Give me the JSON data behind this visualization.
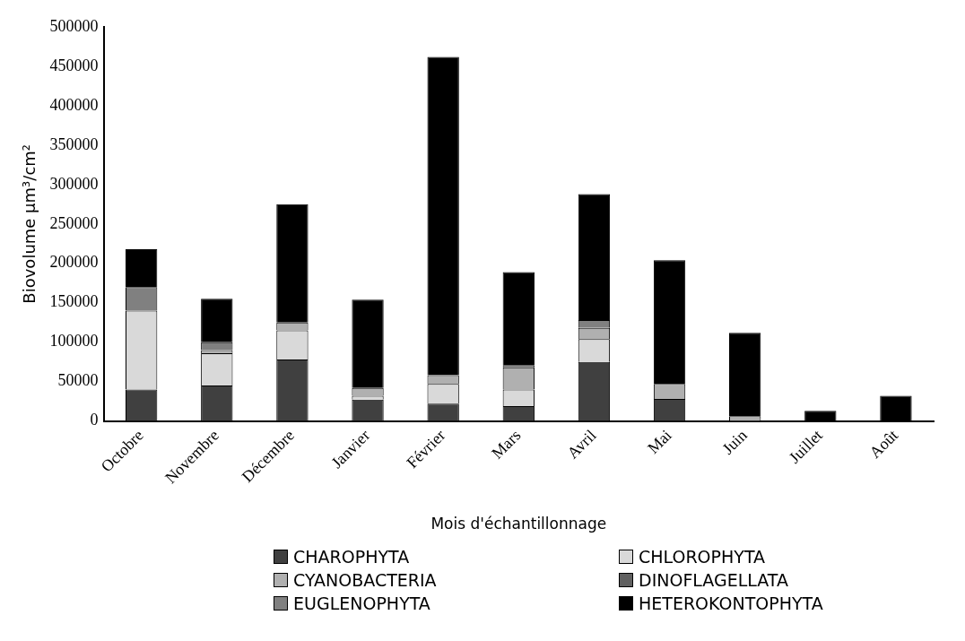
{
  "chart_data": {
    "type": "bar",
    "stacked": true,
    "xlabel": "Mois d'échantillonnage",
    "ylabel": "Biovolume µm³/cm²",
    "categories": [
      "Octobre",
      "Novembre",
      "Décembre",
      "Janvier",
      "Février",
      "Mars",
      "Avril",
      "Mai",
      "Juin",
      "Juillet",
      "Août"
    ],
    "series": [
      {
        "name": "CHAROPHYTA",
        "color": "#404040",
        "values": [
          40000,
          45000,
          78000,
          27000,
          22000,
          19000,
          75000,
          28000,
          0,
          0,
          0
        ]
      },
      {
        "name": "CHLOROPHYTA",
        "color": "#d9d9d9",
        "values": [
          100000,
          41000,
          37000,
          5000,
          25000,
          21000,
          29000,
          0,
          0,
          0,
          0
        ]
      },
      {
        "name": "CYANOBACTERIA",
        "color": "#b0b0b0",
        "values": [
          0,
          4000,
          10000,
          10000,
          11000,
          28000,
          14000,
          19000,
          6000,
          null,
          0
        ]
      },
      {
        "name": "DINOFLAGELLATA",
        "color": "#606060",
        "values": [
          0,
          0,
          0,
          0,
          0,
          3000,
          0,
          0,
          0,
          0,
          0
        ]
      },
      {
        "name": "EUGLENOPHYTA",
        "color": "#808080",
        "values": [
          30000,
          10000,
          0,
          0,
          0,
          0,
          10000,
          0,
          0,
          0,
          0
        ]
      },
      {
        "name": "HETEROKONTOPHYTA",
        "color": "#000000",
        "values": [
          48000,
          55000,
          150000,
          112000,
          404000,
          118000,
          160000,
          157000,
          106000,
          13000,
          32000
        ]
      }
    ],
    "ylim": [
      0,
      500000
    ],
    "yticks": [
      0,
      50000,
      100000,
      150000,
      200000,
      250000,
      300000,
      350000,
      400000,
      450000,
      500000
    ],
    "grid": false,
    "legend": "bottom"
  }
}
